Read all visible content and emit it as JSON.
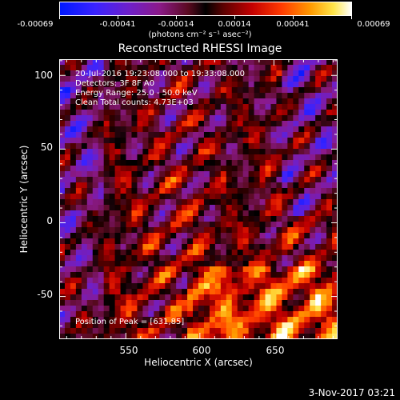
{
  "colorbar": {
    "tick_labels": [
      "-0.00069",
      "-0.00041",
      "-0.00014",
      "0.00014",
      "0.00041",
      "0.00069"
    ],
    "unit": "(photons cm⁻² s⁻¹ asec⁻²)"
  },
  "title": "Reconstructed RHESSI Image",
  "annotations": {
    "time": "20-Jul-2016 19:23:08.000 to 19:33:08.000",
    "detectors": "Detectors: 3F 8F  A0",
    "energy": "Energy Range: 25.0 - 50.0 keV",
    "clean": "Clean    Total counts: 4.73E+03",
    "peak": "Position of Peak = [631,85]"
  },
  "axes": {
    "xlabel": "Heliocentric X (arcsec)",
    "ylabel": "Heliocentric Y (arcsec)",
    "x_ticks": [
      "550",
      "600",
      "650"
    ],
    "y_ticks": [
      "100",
      "50",
      "0",
      "-50"
    ],
    "xlim": [
      505,
      693
    ],
    "ylim": [
      -79,
      111
    ]
  },
  "footer": "3-Nov-2017 03:21",
  "colors": {
    "background": "#000000",
    "axes": "#ffffff"
  }
}
